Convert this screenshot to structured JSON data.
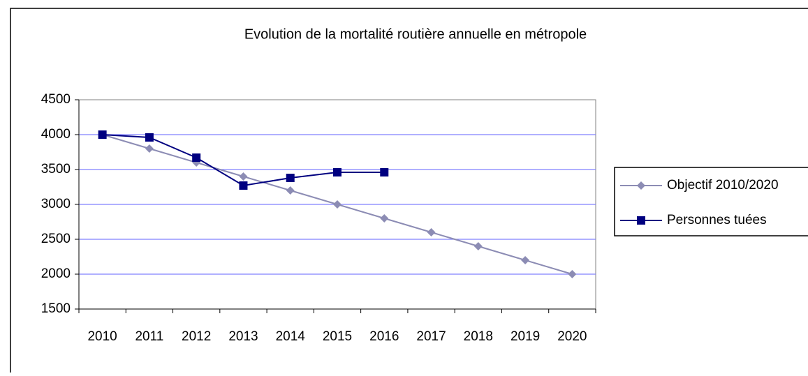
{
  "chart_data": {
    "type": "line",
    "title": "Evolution de la mortalité routière annuelle en métropole",
    "categories": [
      "2010",
      "2011",
      "2012",
      "2013",
      "2014",
      "2015",
      "2016",
      "2017",
      "2018",
      "2019",
      "2020"
    ],
    "series": [
      {
        "name": "Objectif 2010/2020",
        "color": "#8c8cb4",
        "marker": "diamond",
        "values": [
          4000,
          3800,
          3600,
          3400,
          3200,
          3000,
          2800,
          2600,
          2400,
          2200,
          2000
        ]
      },
      {
        "name": "Personnes tuées",
        "color": "#000080",
        "marker": "square",
        "values": [
          4000,
          3960,
          3670,
          3270,
          3380,
          3460,
          3460,
          null,
          null,
          null,
          null
        ]
      }
    ],
    "ylim": [
      1500,
      4500
    ],
    "yticks": [
      1500,
      2000,
      2500,
      3000,
      3500,
      4000,
      4500
    ],
    "grid": true,
    "grid_color": "#8080ff",
    "legend": "right"
  }
}
